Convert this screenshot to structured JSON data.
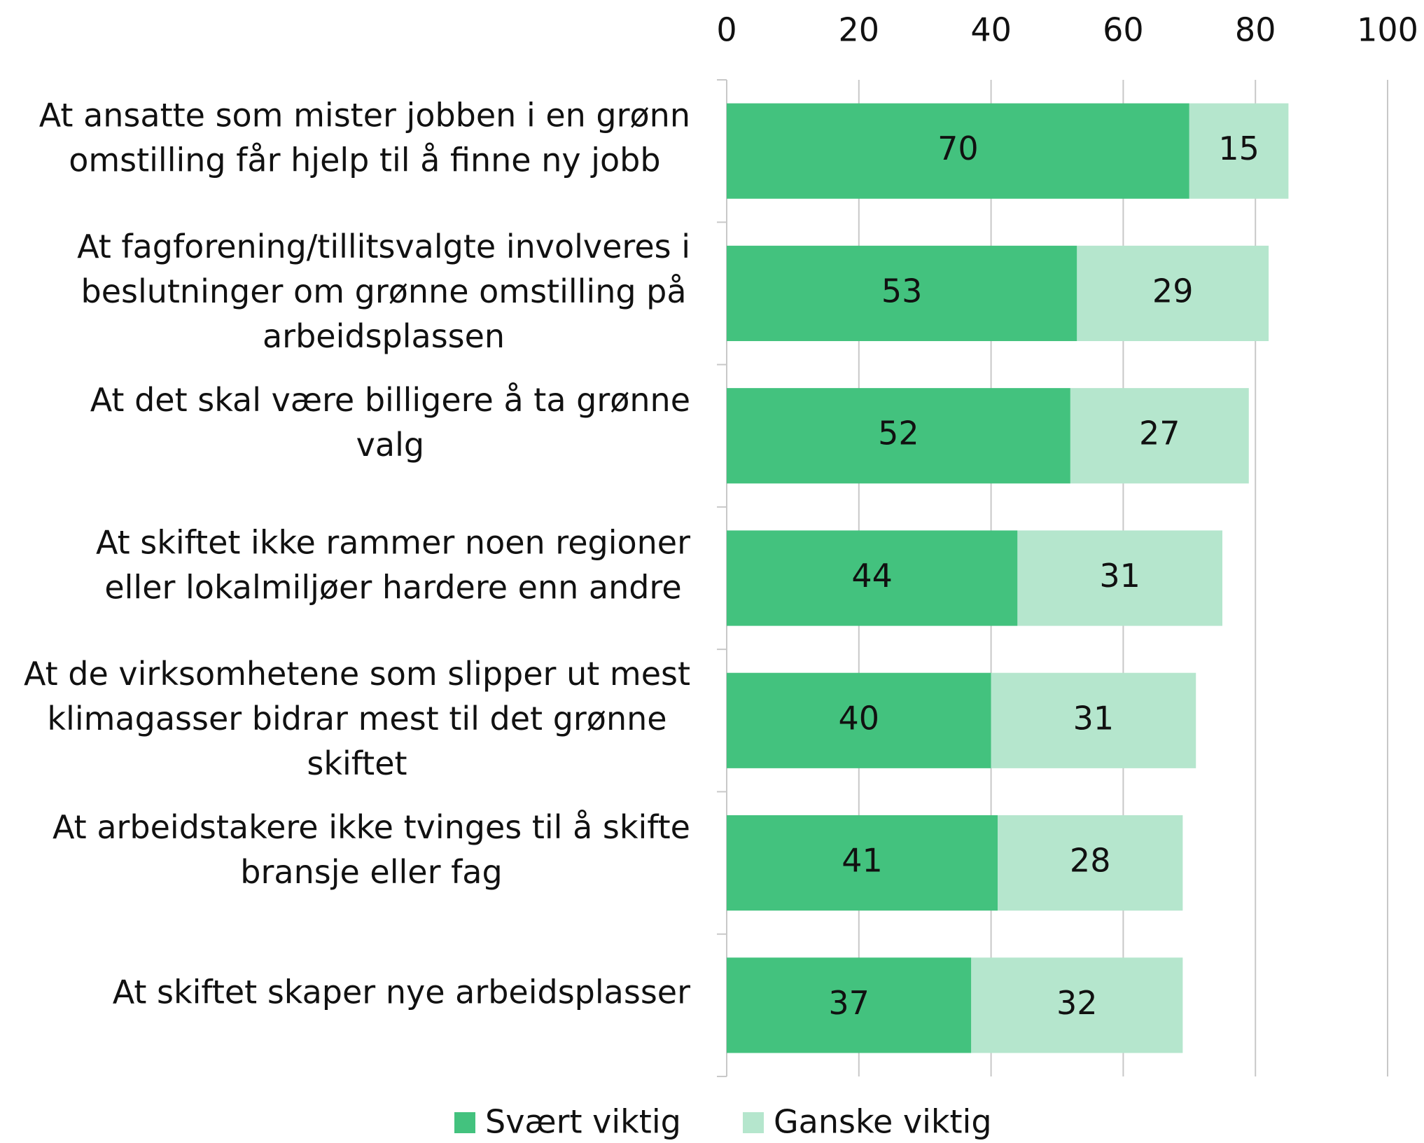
{
  "chart_data": {
    "type": "stacked_bar_horizontal",
    "categories": [
      "At ansatte som mister jobben i en grønn omstilling får hjelp til å finne ny jobb",
      "At fagforening/tillitsvalgte involveres i beslutninger om grønne omstilling på arbeidsplassen",
      "At det skal være billigere å ta grønne valg",
      "At skiftet ikke rammer noen regioner eller lokalmiljøer hardere enn andre",
      "At de virksomhetene som slipper ut mest klimagasser bidrar mest til det grønne skiftet",
      "At arbeidstakere ikke tvinges til å skifte bransje eller fag",
      "At skiftet skaper nye arbeidsplasser"
    ],
    "series": [
      {
        "name": "Svært viktig",
        "color": "#43c27e",
        "values": [
          70,
          53,
          52,
          44,
          40,
          41,
          37
        ]
      },
      {
        "name": "Ganske viktig",
        "color": "#b5e6cd",
        "values": [
          15,
          29,
          27,
          31,
          31,
          28,
          32
        ]
      }
    ],
    "xlim": [
      0,
      100
    ],
    "xticks": [
      0,
      20,
      40,
      60,
      80,
      100
    ],
    "grid": true,
    "legend": "bottom"
  }
}
